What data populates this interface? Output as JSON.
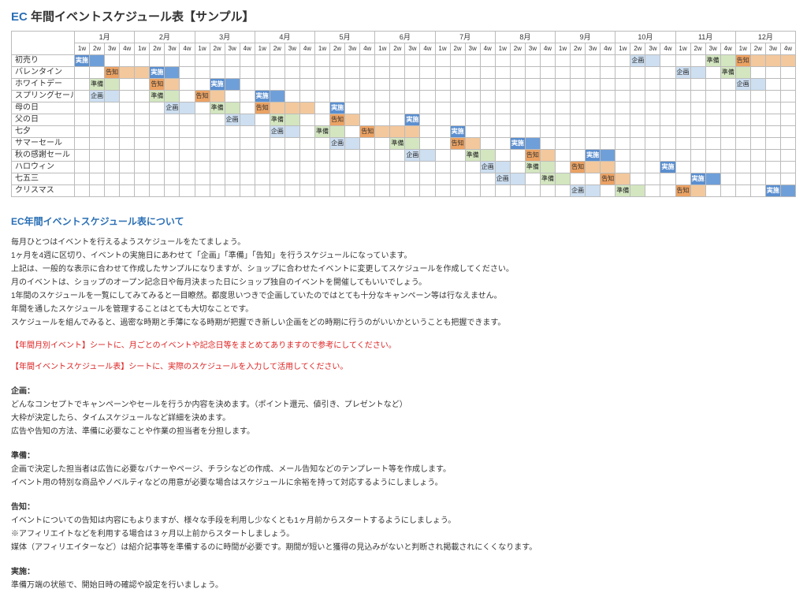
{
  "title": {
    "ec": "EC",
    "rest": " 年間イベントスケジュール表【サンプル】"
  },
  "months": [
    "1月",
    "2月",
    "3月",
    "4月",
    "5月",
    "6月",
    "7月",
    "8月",
    "9月",
    "10月",
    "11月",
    "12月"
  ],
  "weeks": [
    "1w",
    "2w",
    "3w",
    "4w"
  ],
  "colors": {
    "plan": "#d4e2f2",
    "prep": "#d9e8c7",
    "notice": "#f7ddc4",
    "run": "#6f9fd8",
    "border": "#bbbbbb"
  },
  "legend": {
    "plan": "企画",
    "prep": "準備",
    "notice": "告知",
    "run": "実施"
  },
  "rows": [
    {
      "name": "初売り",
      "bars": [
        {
          "start": 0,
          "len": 2,
          "type": "run",
          "label": "実施"
        },
        {
          "start": 37,
          "len": 2,
          "type": "plan",
          "label": "企画"
        },
        {
          "start": 42,
          "len": 2,
          "type": "prep",
          "label": "準備"
        },
        {
          "start": 44,
          "len": 4,
          "type": "notice",
          "label": "告知"
        }
      ]
    },
    {
      "name": "バレンタイン",
      "bars": [
        {
          "start": 2,
          "len": 3,
          "type": "notice",
          "label": "告知"
        },
        {
          "start": 5,
          "len": 2,
          "type": "run",
          "label": "実施"
        },
        {
          "start": 40,
          "len": 2,
          "type": "plan",
          "label": "企画"
        },
        {
          "start": 43,
          "len": 2,
          "type": "prep",
          "label": "準備"
        }
      ]
    },
    {
      "name": "ホワイトデー",
      "bars": [
        {
          "start": 1,
          "len": 2,
          "type": "prep",
          "label": "準備"
        },
        {
          "start": 5,
          "len": 2,
          "type": "notice",
          "label": "告知"
        },
        {
          "start": 9,
          "len": 2,
          "type": "run",
          "label": "実施"
        },
        {
          "start": 44,
          "len": 2,
          "type": "plan",
          "label": "企画"
        }
      ]
    },
    {
      "name": "スプリングセール",
      "bars": [
        {
          "start": 1,
          "len": 2,
          "type": "plan",
          "label": "企画"
        },
        {
          "start": 5,
          "len": 2,
          "type": "prep",
          "label": "準備"
        },
        {
          "start": 8,
          "len": 2,
          "type": "notice",
          "label": "告知"
        },
        {
          "start": 12,
          "len": 2,
          "type": "run",
          "label": "実施"
        }
      ]
    },
    {
      "name": "母の日",
      "bars": [
        {
          "start": 6,
          "len": 2,
          "type": "plan",
          "label": "企画"
        },
        {
          "start": 9,
          "len": 2,
          "type": "prep",
          "label": "準備"
        },
        {
          "start": 12,
          "len": 4,
          "type": "notice",
          "label": "告知"
        },
        {
          "start": 17,
          "len": 1,
          "type": "run",
          "label": "実施"
        }
      ]
    },
    {
      "name": "父の日",
      "bars": [
        {
          "start": 10,
          "len": 2,
          "type": "plan",
          "label": "企画"
        },
        {
          "start": 13,
          "len": 2,
          "type": "prep",
          "label": "準備"
        },
        {
          "start": 17,
          "len": 2,
          "type": "notice",
          "label": "告知"
        },
        {
          "start": 22,
          "len": 1,
          "type": "run",
          "label": "実施"
        }
      ]
    },
    {
      "name": "七夕",
      "bars": [
        {
          "start": 13,
          "len": 2,
          "type": "plan",
          "label": "企画"
        },
        {
          "start": 16,
          "len": 2,
          "type": "prep",
          "label": "準備"
        },
        {
          "start": 19,
          "len": 4,
          "type": "notice",
          "label": "告知"
        },
        {
          "start": 25,
          "len": 1,
          "type": "run",
          "label": "実施"
        }
      ]
    },
    {
      "name": "サマーセール",
      "bars": [
        {
          "start": 17,
          "len": 2,
          "type": "plan",
          "label": "企画"
        },
        {
          "start": 21,
          "len": 2,
          "type": "prep",
          "label": "準備"
        },
        {
          "start": 25,
          "len": 2,
          "type": "notice",
          "label": "告知"
        },
        {
          "start": 29,
          "len": 2,
          "type": "run",
          "label": "実施"
        }
      ]
    },
    {
      "name": "秋の感謝セール",
      "bars": [
        {
          "start": 22,
          "len": 2,
          "type": "plan",
          "label": "企画"
        },
        {
          "start": 26,
          "len": 2,
          "type": "prep",
          "label": "準備"
        },
        {
          "start": 30,
          "len": 2,
          "type": "notice",
          "label": "告知"
        },
        {
          "start": 34,
          "len": 2,
          "type": "run",
          "label": "実施"
        }
      ]
    },
    {
      "name": "ハロウィン",
      "bars": [
        {
          "start": 27,
          "len": 2,
          "type": "plan",
          "label": "企画"
        },
        {
          "start": 30,
          "len": 2,
          "type": "prep",
          "label": "準備"
        },
        {
          "start": 33,
          "len": 3,
          "type": "notice",
          "label": "告知"
        },
        {
          "start": 39,
          "len": 1,
          "type": "run",
          "label": "実施"
        }
      ]
    },
    {
      "name": "七五三",
      "bars": [
        {
          "start": 28,
          "len": 2,
          "type": "plan",
          "label": "企画"
        },
        {
          "start": 31,
          "len": 2,
          "type": "prep",
          "label": "準備"
        },
        {
          "start": 35,
          "len": 2,
          "type": "notice",
          "label": "告知"
        },
        {
          "start": 41,
          "len": 2,
          "type": "run",
          "label": "実施"
        }
      ]
    },
    {
      "name": "クリスマス",
      "bars": [
        {
          "start": 33,
          "len": 2,
          "type": "plan",
          "label": "企画"
        },
        {
          "start": 36,
          "len": 2,
          "type": "prep",
          "label": "準備"
        },
        {
          "start": 40,
          "len": 2,
          "type": "notice",
          "label": "告知"
        },
        {
          "start": 46,
          "len": 2,
          "type": "run",
          "label": "実施"
        }
      ]
    }
  ],
  "descTitle": "EC年間イベントスケジュール表について",
  "descBody": [
    {
      "t": "毎月ひとつはイベントを行えるようスケジュールをたてましょう。"
    },
    {
      "t": "1ヶ月を4週に区切り、イベントの実施日にあわせて「企画」「準備」「告知」を行うスケジュールになっています。"
    },
    {
      "t": "上記は、一般的な表示に合わせて作成したサンプルになりますが、ショップに合わせたイベントに変更してスケジュールを作成してください。"
    },
    {
      "t": "月のイベントは、ショップのオープン記念日や毎月決まった日にショップ独自のイベントを開催してもいいでしょう。"
    },
    {
      "t": "1年間のスケジュールを一覧にしてみてみると一目瞭然。都度思いつきで企画していたのではとても十分なキャンペーン等は行なえません。"
    },
    {
      "t": "年間を通したスケジュールを管理することはとても大切なことです。"
    },
    {
      "t": "スケジュールを組んでみると、過密な時期と手薄になる時期が把握でき新しい企画をどの時期に行うのがいいかということも把握できます。"
    },
    {
      "t": "【年間月別イベント】シートに、月ごとのイベントや記念日等をまとめてありますので参考にしてください。",
      "cls": "red redfirst"
    },
    {
      "t": "【年間イベントスケジュール表】シートに、実際のスケジュールを入力して活用してください。",
      "cls": "red"
    },
    {
      "t": "企画：",
      "cls": "subhead"
    },
    {
      "t": "どんなコンセプトでキャンペーンやセールを行うか内容を決めます。（ポイント還元、値引き、プレゼントなど）"
    },
    {
      "t": "大枠が決定したら、タイムスケジュールなど詳細を決めます。"
    },
    {
      "t": "広告や告知の方法、準備に必要なことや作業の担当者を分担します。"
    },
    {
      "t": "準備：",
      "cls": "subhead"
    },
    {
      "t": "企画で決定した担当者は広告に必要なバナーやページ、チラシなどの作成、メール告知などのテンプレート等を作成します。"
    },
    {
      "t": "イベント用の特別な商品やノベルティなどの用意が必要な場合はスケジュールに余裕を持って対応するようにしましょう。"
    },
    {
      "t": "告知：",
      "cls": "subhead"
    },
    {
      "t": "イベントについての告知は内容にもよりますが、様々な手段を利用し少なくとも1ヶ月前からスタートするようにしましょう。"
    },
    {
      "t": "※アフィリエイトなどを利用する場合は３ヶ月以上前からスタートしましょう。"
    },
    {
      "t": "媒体（アフィリエイターなど）は紹介記事等を準備するのに時間が必要です。期間が短いと獲得の見込みがないと判断され掲載されにくくなります。"
    },
    {
      "t": "実施：",
      "cls": "subhead"
    },
    {
      "t": "準備万端の状態で、開始日時の確認や設定を行いましょう。"
    }
  ]
}
